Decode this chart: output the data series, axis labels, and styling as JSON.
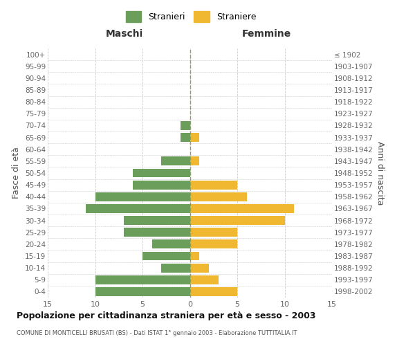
{
  "age_groups": [
    "0-4",
    "5-9",
    "10-14",
    "15-19",
    "20-24",
    "25-29",
    "30-34",
    "35-39",
    "40-44",
    "45-49",
    "50-54",
    "55-59",
    "60-64",
    "65-69",
    "70-74",
    "75-79",
    "80-84",
    "85-89",
    "90-94",
    "95-99",
    "100+"
  ],
  "birth_years": [
    "1998-2002",
    "1993-1997",
    "1988-1992",
    "1983-1987",
    "1978-1982",
    "1973-1977",
    "1968-1972",
    "1963-1967",
    "1958-1962",
    "1953-1957",
    "1948-1952",
    "1943-1947",
    "1938-1942",
    "1933-1937",
    "1928-1932",
    "1923-1927",
    "1918-1922",
    "1913-1917",
    "1908-1912",
    "1903-1907",
    "≤ 1902"
  ],
  "males": [
    10,
    10,
    3,
    5,
    4,
    7,
    7,
    11,
    10,
    6,
    6,
    3,
    0,
    1,
    1,
    0,
    0,
    0,
    0,
    0,
    0
  ],
  "females": [
    5,
    3,
    2,
    1,
    5,
    5,
    10,
    11,
    6,
    5,
    0,
    1,
    0,
    1,
    0,
    0,
    0,
    0,
    0,
    0,
    0
  ],
  "male_color": "#6a9e5a",
  "female_color": "#f0b830",
  "title": "Popolazione per cittadinanza straniera per età e sesso - 2003",
  "subtitle": "COMUNE DI MONTICELLI BRUSATI (BS) - Dati ISTAT 1° gennaio 2003 - Elaborazione TUTTITALIA.IT",
  "header_left": "Maschi",
  "header_right": "Femmine",
  "ylabel_left": "Fasce di età",
  "ylabel_right": "Anni di nascita",
  "legend_male": "Stranieri",
  "legend_female": "Straniere",
  "xlim": 15,
  "bar_height": 0.75
}
